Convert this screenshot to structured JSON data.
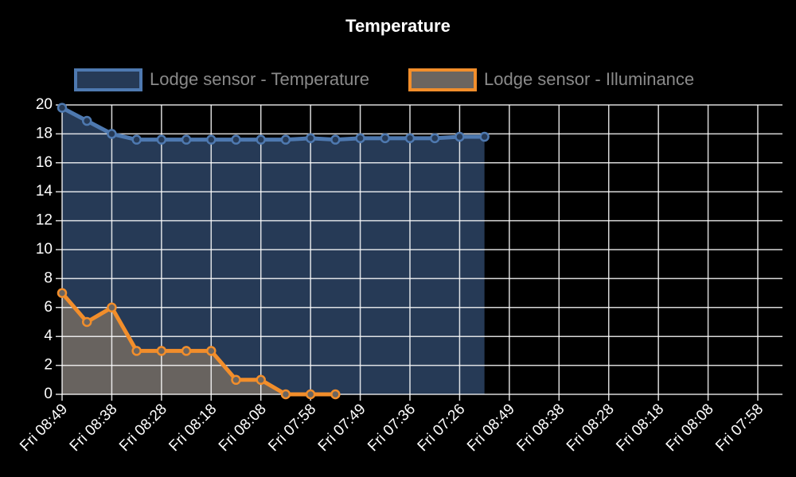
{
  "chart_data": {
    "type": "line",
    "title": "Temperature",
    "categories": [
      "Fri 08:49",
      null,
      "Fri 08:38",
      null,
      "Fri 08:28",
      null,
      "Fri 08:18",
      null,
      "Fri 08:08",
      null,
      "Fri 07:58",
      null,
      "Fri 07:49",
      null,
      "Fri 07:36",
      null,
      "Fri 07:26",
      null,
      "Fri 08:49",
      null,
      "Fri 08:38",
      null,
      "Fri 08:28",
      null,
      "Fri 08:18",
      null,
      "Fri 08:08",
      null,
      "Fri 07:58"
    ],
    "series": [
      {
        "name": "Lodge sensor - Temperature",
        "color": "#4e79b0",
        "fill": "#263a56",
        "values": [
          19.8,
          18.9,
          18.0,
          17.6,
          17.6,
          17.6,
          17.6,
          17.6,
          17.6,
          17.6,
          17.7,
          17.6,
          17.7,
          17.7,
          17.7,
          17.7,
          17.8,
          17.8,
          null,
          null,
          null,
          null,
          null,
          null,
          null,
          null,
          null,
          null,
          null
        ]
      },
      {
        "name": "Lodge sensor - Illuminance",
        "color": "#f28e2b",
        "fill": "#6b6560",
        "values": [
          7,
          5,
          6,
          3,
          3,
          3,
          3,
          1,
          1,
          0,
          0,
          0,
          null,
          null,
          null,
          null,
          null,
          null,
          null,
          null,
          null,
          null,
          null,
          null,
          null,
          null,
          null,
          null,
          null
        ]
      }
    ],
    "ylim": [
      0,
      20
    ],
    "yticks": [
      0,
      2,
      4,
      6,
      8,
      10,
      12,
      14,
      16,
      18,
      20
    ],
    "grid": true
  }
}
